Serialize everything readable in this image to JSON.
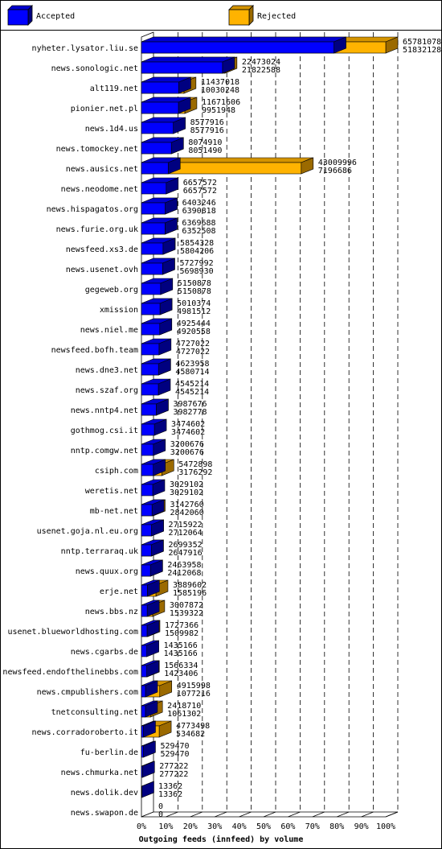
{
  "legend": {
    "accepted_label": "Accepted",
    "rejected_label": "Rejected"
  },
  "colors": {
    "accepted": "#0000ff",
    "rejected": "#ffb300",
    "background": "#ffffff",
    "grid": "#000000"
  },
  "chart_data": {
    "type": "bar",
    "orientation": "horizontal",
    "title": "Outgoing feeds (innfeed) by volume",
    "x_tick_labels": [
      "0%",
      "10%",
      "20%",
      "30%",
      "40%",
      "50%",
      "60%",
      "70%",
      "80%",
      "90%",
      "100%"
    ],
    "xlim": [
      0,
      100
    ],
    "grid": "vertical dashed",
    "legend_position": "top",
    "categories": [
      "nyheter.lysator.liu.se",
      "news.sonologic.net",
      "alt119.net",
      "pionier.net.pl",
      "news.1d4.us",
      "news.tomockey.net",
      "news.ausics.net",
      "news.neodome.net",
      "news.hispagatos.org",
      "news.furie.org.uk",
      "newsfeed.xs3.de",
      "news.usenet.ovh",
      "gegeweb.org",
      "xmission",
      "news.niel.me",
      "newsfeed.bofh.team",
      "news.dne3.net",
      "news.szaf.org",
      "news.nntp4.net",
      "gothmog.csi.it",
      "nntp.comgw.net",
      "csiph.com",
      "weretis.net",
      "mb-net.net",
      "usenet.goja.nl.eu.org",
      "nntp.terraraq.uk",
      "news.quux.org",
      "erje.net",
      "news.bbs.nz",
      "usenet.blueworldhosting.com",
      "news.cgarbs.de",
      "newsfeed.endofthelinebbs.com",
      "news.cmpublishers.com",
      "tnetconsulting.net",
      "news.corradoroberto.it",
      "fu-berlin.de",
      "news.chmurka.net",
      "news.dolik.dev",
      "news.swapon.de"
    ],
    "series": [
      {
        "name": "Accepted",
        "values": [
          51832128,
          21822588,
          10030248,
          9951948,
          8577916,
          8051490,
          7196686,
          6657572,
          6390818,
          6352508,
          5804206,
          5698930,
          5150878,
          4981512,
          4920558,
          4727022,
          4580714,
          4545214,
          3982778,
          3474602,
          3200676,
          3176292,
          3029102,
          2842060,
          2712064,
          2647916,
          2412068,
          1585196,
          1539322,
          1509982,
          1435166,
          1423406,
          1077216,
          1061302,
          534682,
          529470,
          277222,
          13362,
          0
        ]
      },
      {
        "name": "Rejected",
        "values": [
          65781078,
          22473024,
          11437018,
          11671606,
          8577916,
          8074910,
          43009996,
          6657572,
          6403246,
          6369688,
          5854328,
          5727992,
          5150878,
          5010374,
          4925444,
          4727022,
          4623958,
          4545214,
          3987676,
          3474602,
          3200676,
          5472898,
          3029102,
          3142760,
          2715922,
          2699352,
          2463958,
          3889602,
          3007872,
          1727366,
          1435166,
          1566334,
          4915998,
          2418710,
          4773498,
          529470,
          277222,
          13362,
          0
        ]
      }
    ]
  }
}
